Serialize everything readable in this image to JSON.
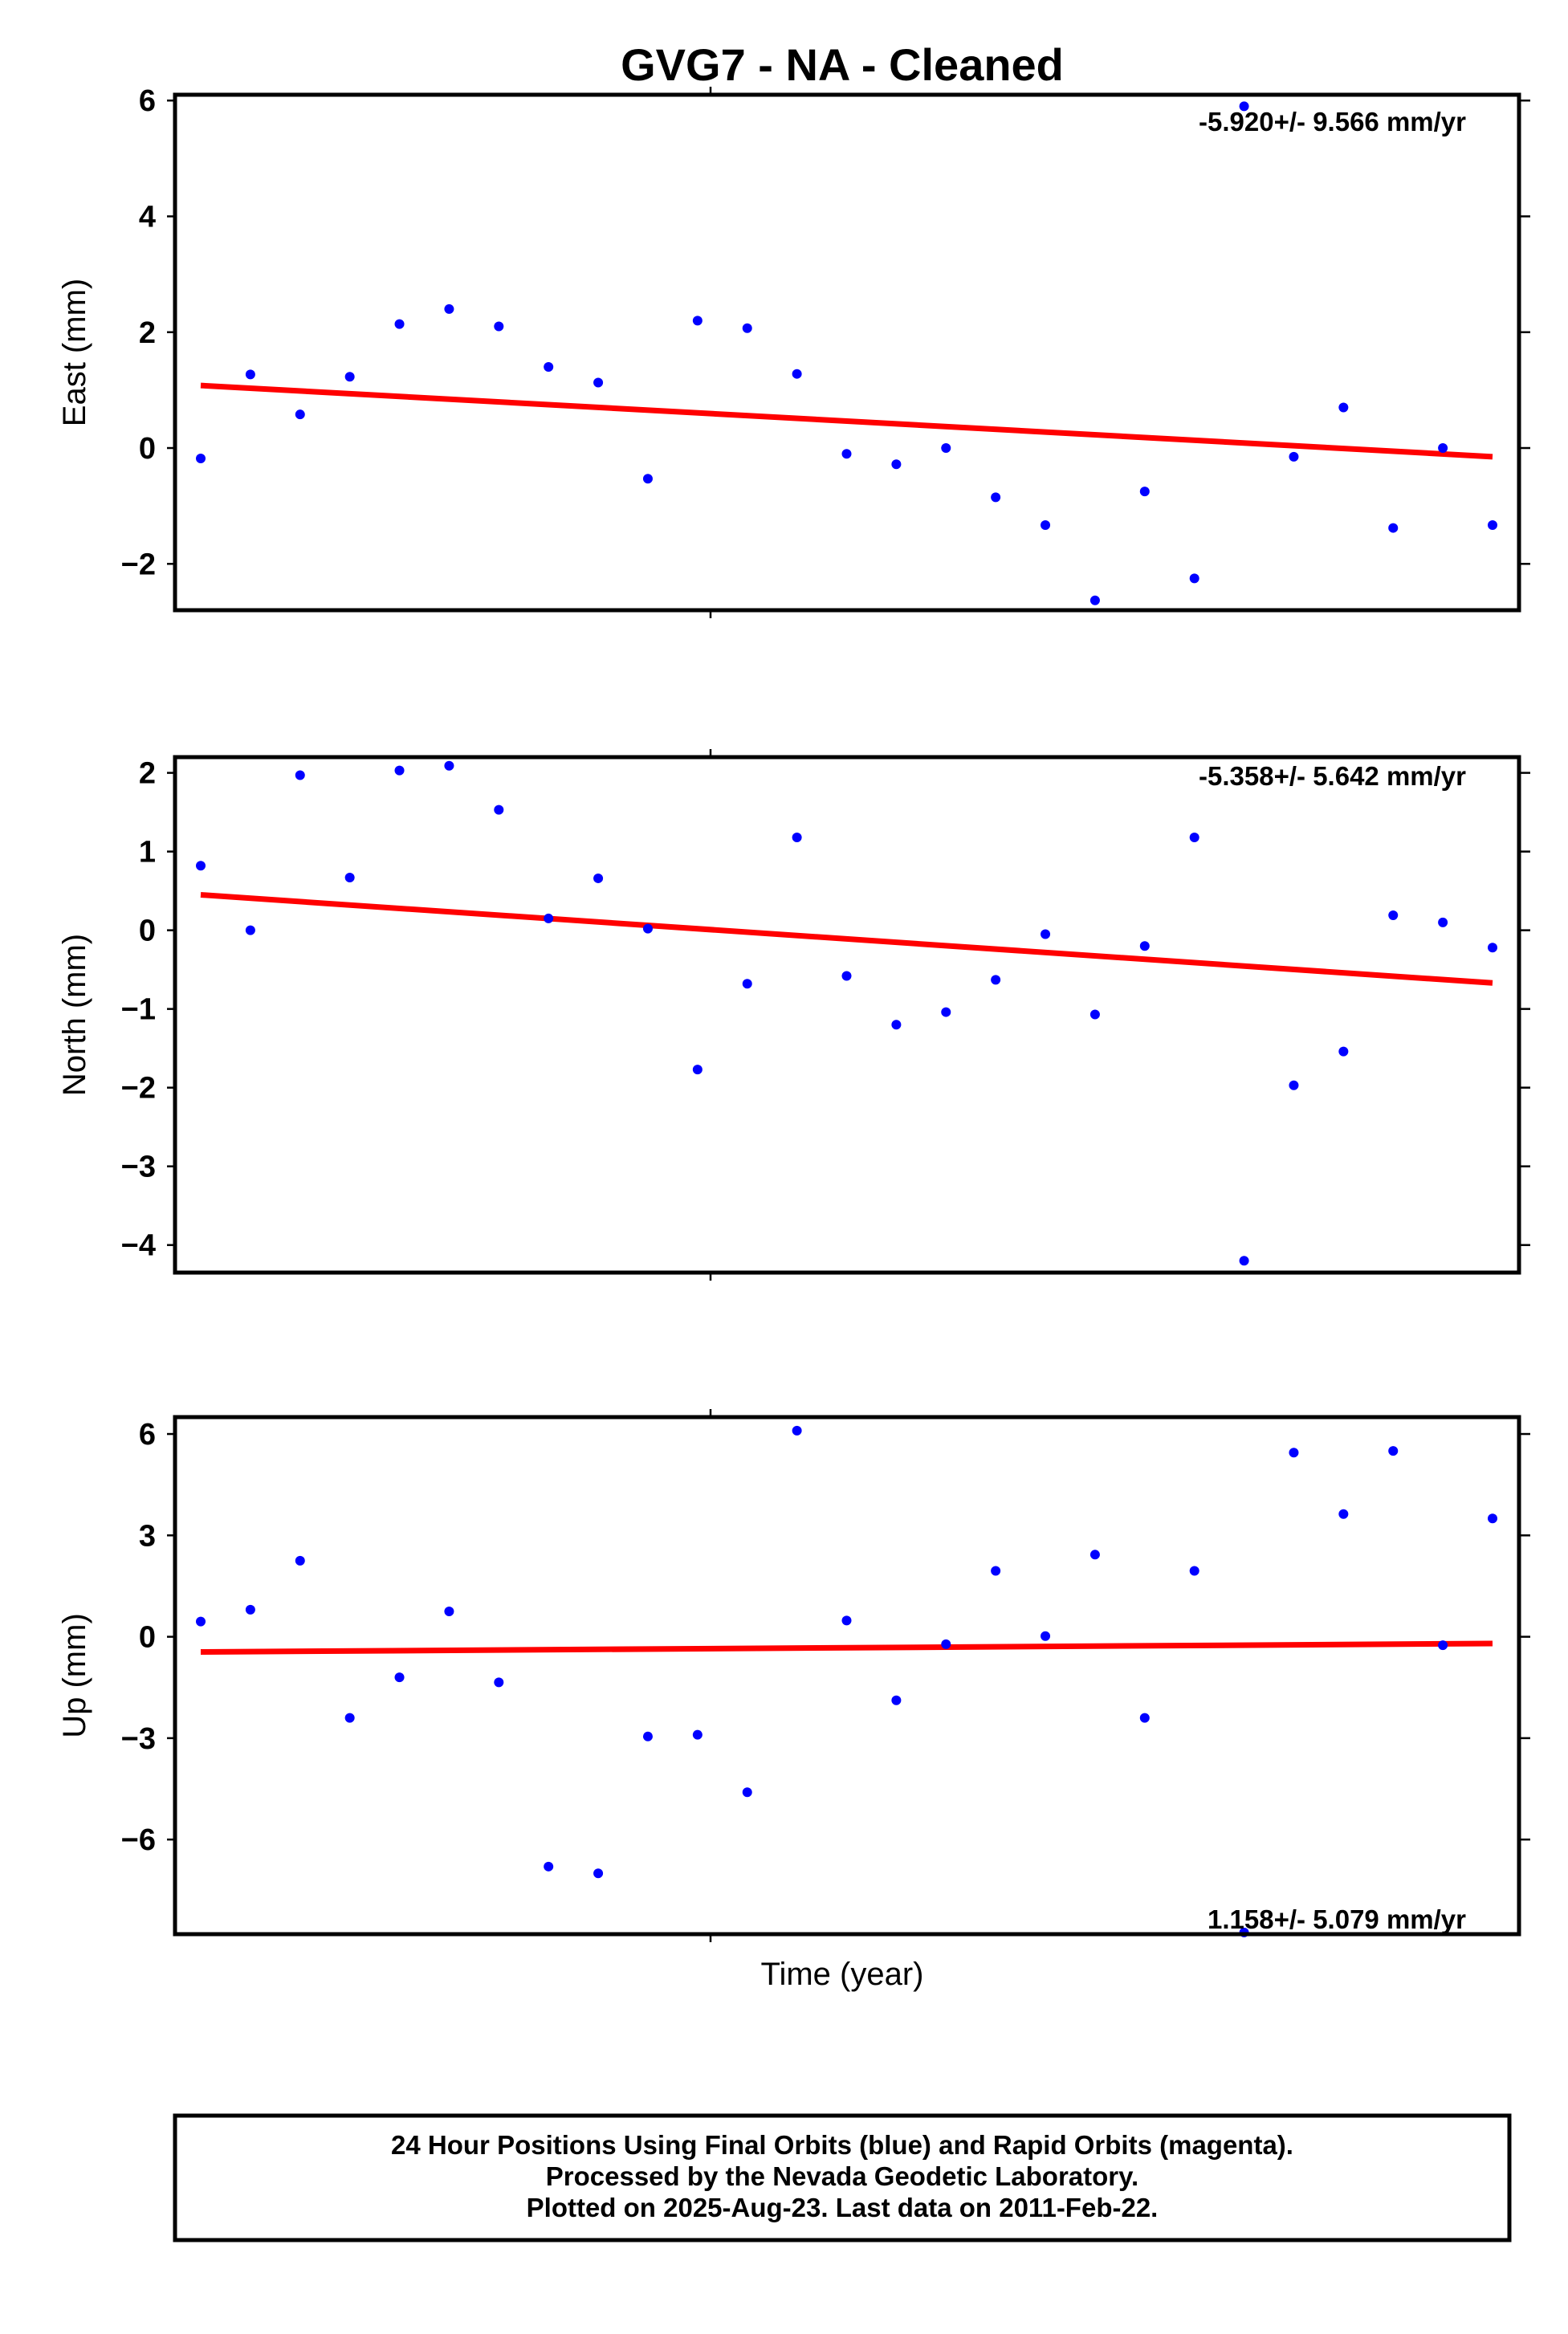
{
  "title": "GVG7  - NA - Cleaned",
  "xlabel": "Time (year)",
  "colors": {
    "final_orbits": "#0000ff",
    "trend": "#ff0000",
    "frame": "#000000"
  },
  "footer": {
    "line1": "24 Hour Positions Using Final Orbits (blue) and Rapid Orbits (magenta).",
    "line2": "Processed by the Nevada Geodetic Laboratory.",
    "line3": "Plotted on 2025-Aug-23. Last data on 2011-Feb-22."
  },
  "chart_data": [
    {
      "type": "scatter",
      "ylabel": "East (mm)",
      "rate_label": "-5.920+/- 9.566 mm/yr",
      "ylim": [
        -2.8,
        6.1
      ],
      "yticks": [
        -2,
        0,
        2,
        4,
        6
      ],
      "ytick_labels": [
        "−2",
        "0",
        "2",
        "4",
        "6"
      ],
      "trend": [
        1.08,
        -0.15
      ],
      "values": [
        -0.18,
        1.27,
        0.58,
        1.23,
        2.14,
        2.4,
        2.1,
        1.4,
        1.13,
        -0.53,
        2.2,
        2.07,
        1.28,
        -0.1,
        -0.28,
        0.0,
        -0.85,
        -1.33,
        -2.63,
        -0.75,
        -2.25,
        5.9,
        -0.15,
        0.7,
        -1.38,
        0.0,
        -1.33
      ]
    },
    {
      "type": "scatter",
      "ylabel": "North (mm)",
      "rate_label": "-5.358+/- 5.642 mm/yr",
      "ylim": [
        -4.35,
        2.2
      ],
      "yticks": [
        -4,
        -3,
        -2,
        -1,
        0,
        1,
        2
      ],
      "ytick_labels": [
        "−4",
        "−3",
        "−2",
        "−1",
        "0",
        "1",
        "2"
      ],
      "trend": [
        0.45,
        -0.67
      ],
      "values": [
        0.82,
        0.0,
        1.97,
        0.67,
        2.03,
        2.09,
        1.53,
        0.15,
        0.66,
        0.02,
        -1.77,
        -0.68,
        1.18,
        -0.58,
        -1.2,
        -1.04,
        -0.63,
        -0.05,
        -1.07,
        -0.2,
        1.18,
        -4.2,
        -1.97,
        -1.54,
        0.19,
        0.1,
        -0.22
      ]
    },
    {
      "type": "scatter",
      "ylabel": "Up (mm)",
      "rate_label": "1.158+/- 5.079 mm/yr",
      "ylim": [
        -8.8,
        6.5
      ],
      "yticks": [
        -6,
        -3,
        0,
        3,
        6
      ],
      "ytick_labels": [
        "−6",
        "−3",
        "0",
        "3",
        "6"
      ],
      "trend": [
        -0.45,
        -0.2
      ],
      "values": [
        0.45,
        0.8,
        2.25,
        -2.4,
        -1.2,
        0.75,
        -1.35,
        -6.8,
        -7.0,
        -2.95,
        -2.9,
        -4.6,
        6.1,
        0.48,
        -1.88,
        -0.22,
        1.95,
        0.02,
        2.43,
        -2.4,
        1.95,
        -8.75,
        5.45,
        3.63,
        5.5,
        -0.25,
        3.5
      ]
    }
  ]
}
